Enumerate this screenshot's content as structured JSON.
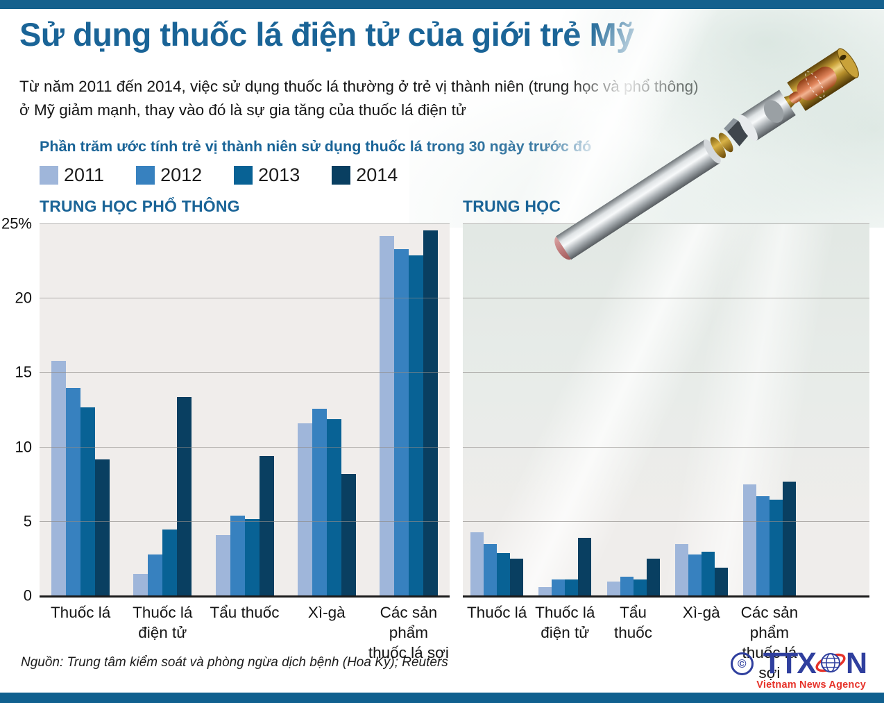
{
  "header": {
    "title": "Sử dụng thuốc lá điện tử của giới trẻ Mỹ",
    "subtitle_line1": "Từ năm 2011 đến 2014, việc sử dụng thuốc lá thường ở trẻ vị thành niên (trung học và phổ thông)",
    "subtitle_line2": "ở Mỹ giảm mạnh, thay vào đó là sự gia tăng của thuốc lá điện tử"
  },
  "legend": {
    "title": "Phần trăm ước tính trẻ vị thành niên sử dụng thuốc lá trong 30 ngày trước đó",
    "years": [
      {
        "label": "2011",
        "color": "#9fb6da"
      },
      {
        "label": "2012",
        "color": "#3781bf"
      },
      {
        "label": "2013",
        "color": "#086295"
      },
      {
        "label": "2014",
        "color": "#093f61"
      }
    ]
  },
  "chart_data": [
    {
      "type": "bar",
      "title": "TRUNG HỌC PHỔ THÔNG",
      "categories": [
        "Thuốc lá",
        "Thuốc lá điện tử",
        "Tẩu thuốc",
        "Xì-gà",
        "Các sản phẩm thuốc lá sợi"
      ],
      "categories_lines": [
        [
          "Thuốc lá"
        ],
        [
          "Thuốc lá",
          "điện tử"
        ],
        [
          "Tẩu thuốc"
        ],
        [
          "Xì-gà"
        ],
        [
          "Các sản phẩm",
          "thuốc lá sợi"
        ]
      ],
      "series": [
        {
          "name": "2011",
          "color": "#9fb6da",
          "values": [
            15.8,
            1.5,
            4.1,
            11.6,
            24.2
          ]
        },
        {
          "name": "2012",
          "color": "#3781bf",
          "values": [
            14.0,
            2.8,
            5.4,
            12.6,
            23.3
          ]
        },
        {
          "name": "2013",
          "color": "#086295",
          "values": [
            12.7,
            4.5,
            5.2,
            11.9,
            22.9
          ]
        },
        {
          "name": "2014",
          "color": "#093f61",
          "values": [
            9.2,
            13.4,
            9.4,
            8.2,
            24.6
          ]
        }
      ],
      "ylim": [
        0,
        25
      ],
      "gridlines": [
        5,
        10,
        15,
        20,
        25
      ],
      "yticks": [
        {
          "value": 25,
          "label": "25%"
        },
        {
          "value": 20,
          "label": "20"
        },
        {
          "value": 15,
          "label": "15"
        },
        {
          "value": 10,
          "label": "10"
        },
        {
          "value": 5,
          "label": "5"
        },
        {
          "value": 0,
          "label": "0"
        }
      ],
      "legend_position": "top",
      "grid": true
    },
    {
      "type": "bar",
      "title": "TRUNG HỌC",
      "categories": [
        "Thuốc lá",
        "Thuốc lá điện tử",
        "Tẩu thuốc",
        "Xì-gà",
        "Các sản phẩm thuốc lá sợi"
      ],
      "categories_lines": [
        [
          "Thuốc lá"
        ],
        [
          "Thuốc lá",
          "điện tử"
        ],
        [
          "Tẩu thuốc"
        ],
        [
          "Xì-gà"
        ],
        [
          "Các sản phẩm",
          "thuốc lá sợi"
        ]
      ],
      "series": [
        {
          "name": "2011",
          "color": "#9fb6da",
          "values": [
            4.3,
            0.6,
            1.0,
            3.5,
            7.5
          ]
        },
        {
          "name": "2012",
          "color": "#3781bf",
          "values": [
            3.5,
            1.1,
            1.3,
            2.8,
            6.7
          ]
        },
        {
          "name": "2013",
          "color": "#086295",
          "values": [
            2.9,
            1.1,
            1.1,
            3.0,
            6.5
          ]
        },
        {
          "name": "2014",
          "color": "#093f61",
          "values": [
            2.5,
            3.9,
            2.5,
            1.9,
            7.7
          ]
        }
      ],
      "ylim": [
        0,
        25
      ],
      "gridlines": [
        5,
        10,
        15,
        20,
        25
      ],
      "yticks": [],
      "legend_position": "top",
      "grid": true
    }
  ],
  "footer": {
    "source": "Nguồn: Trung tâm kiểm soát và phòng ngừa dịch bệnh (Hoa Kỳ); Reuters",
    "logo_copyright": "©",
    "logo_ttx": "TTX",
    "logo_n": "N",
    "logo_tagline": "Vietnam News Agency"
  },
  "colors": {
    "accent_blue": "#1a6497",
    "bar_top": "#14608d",
    "bar_bottom": "#10608f",
    "plot_bg": "#f0edeb",
    "logo_blue": "#2f3f9e",
    "logo_red": "#e63229"
  }
}
